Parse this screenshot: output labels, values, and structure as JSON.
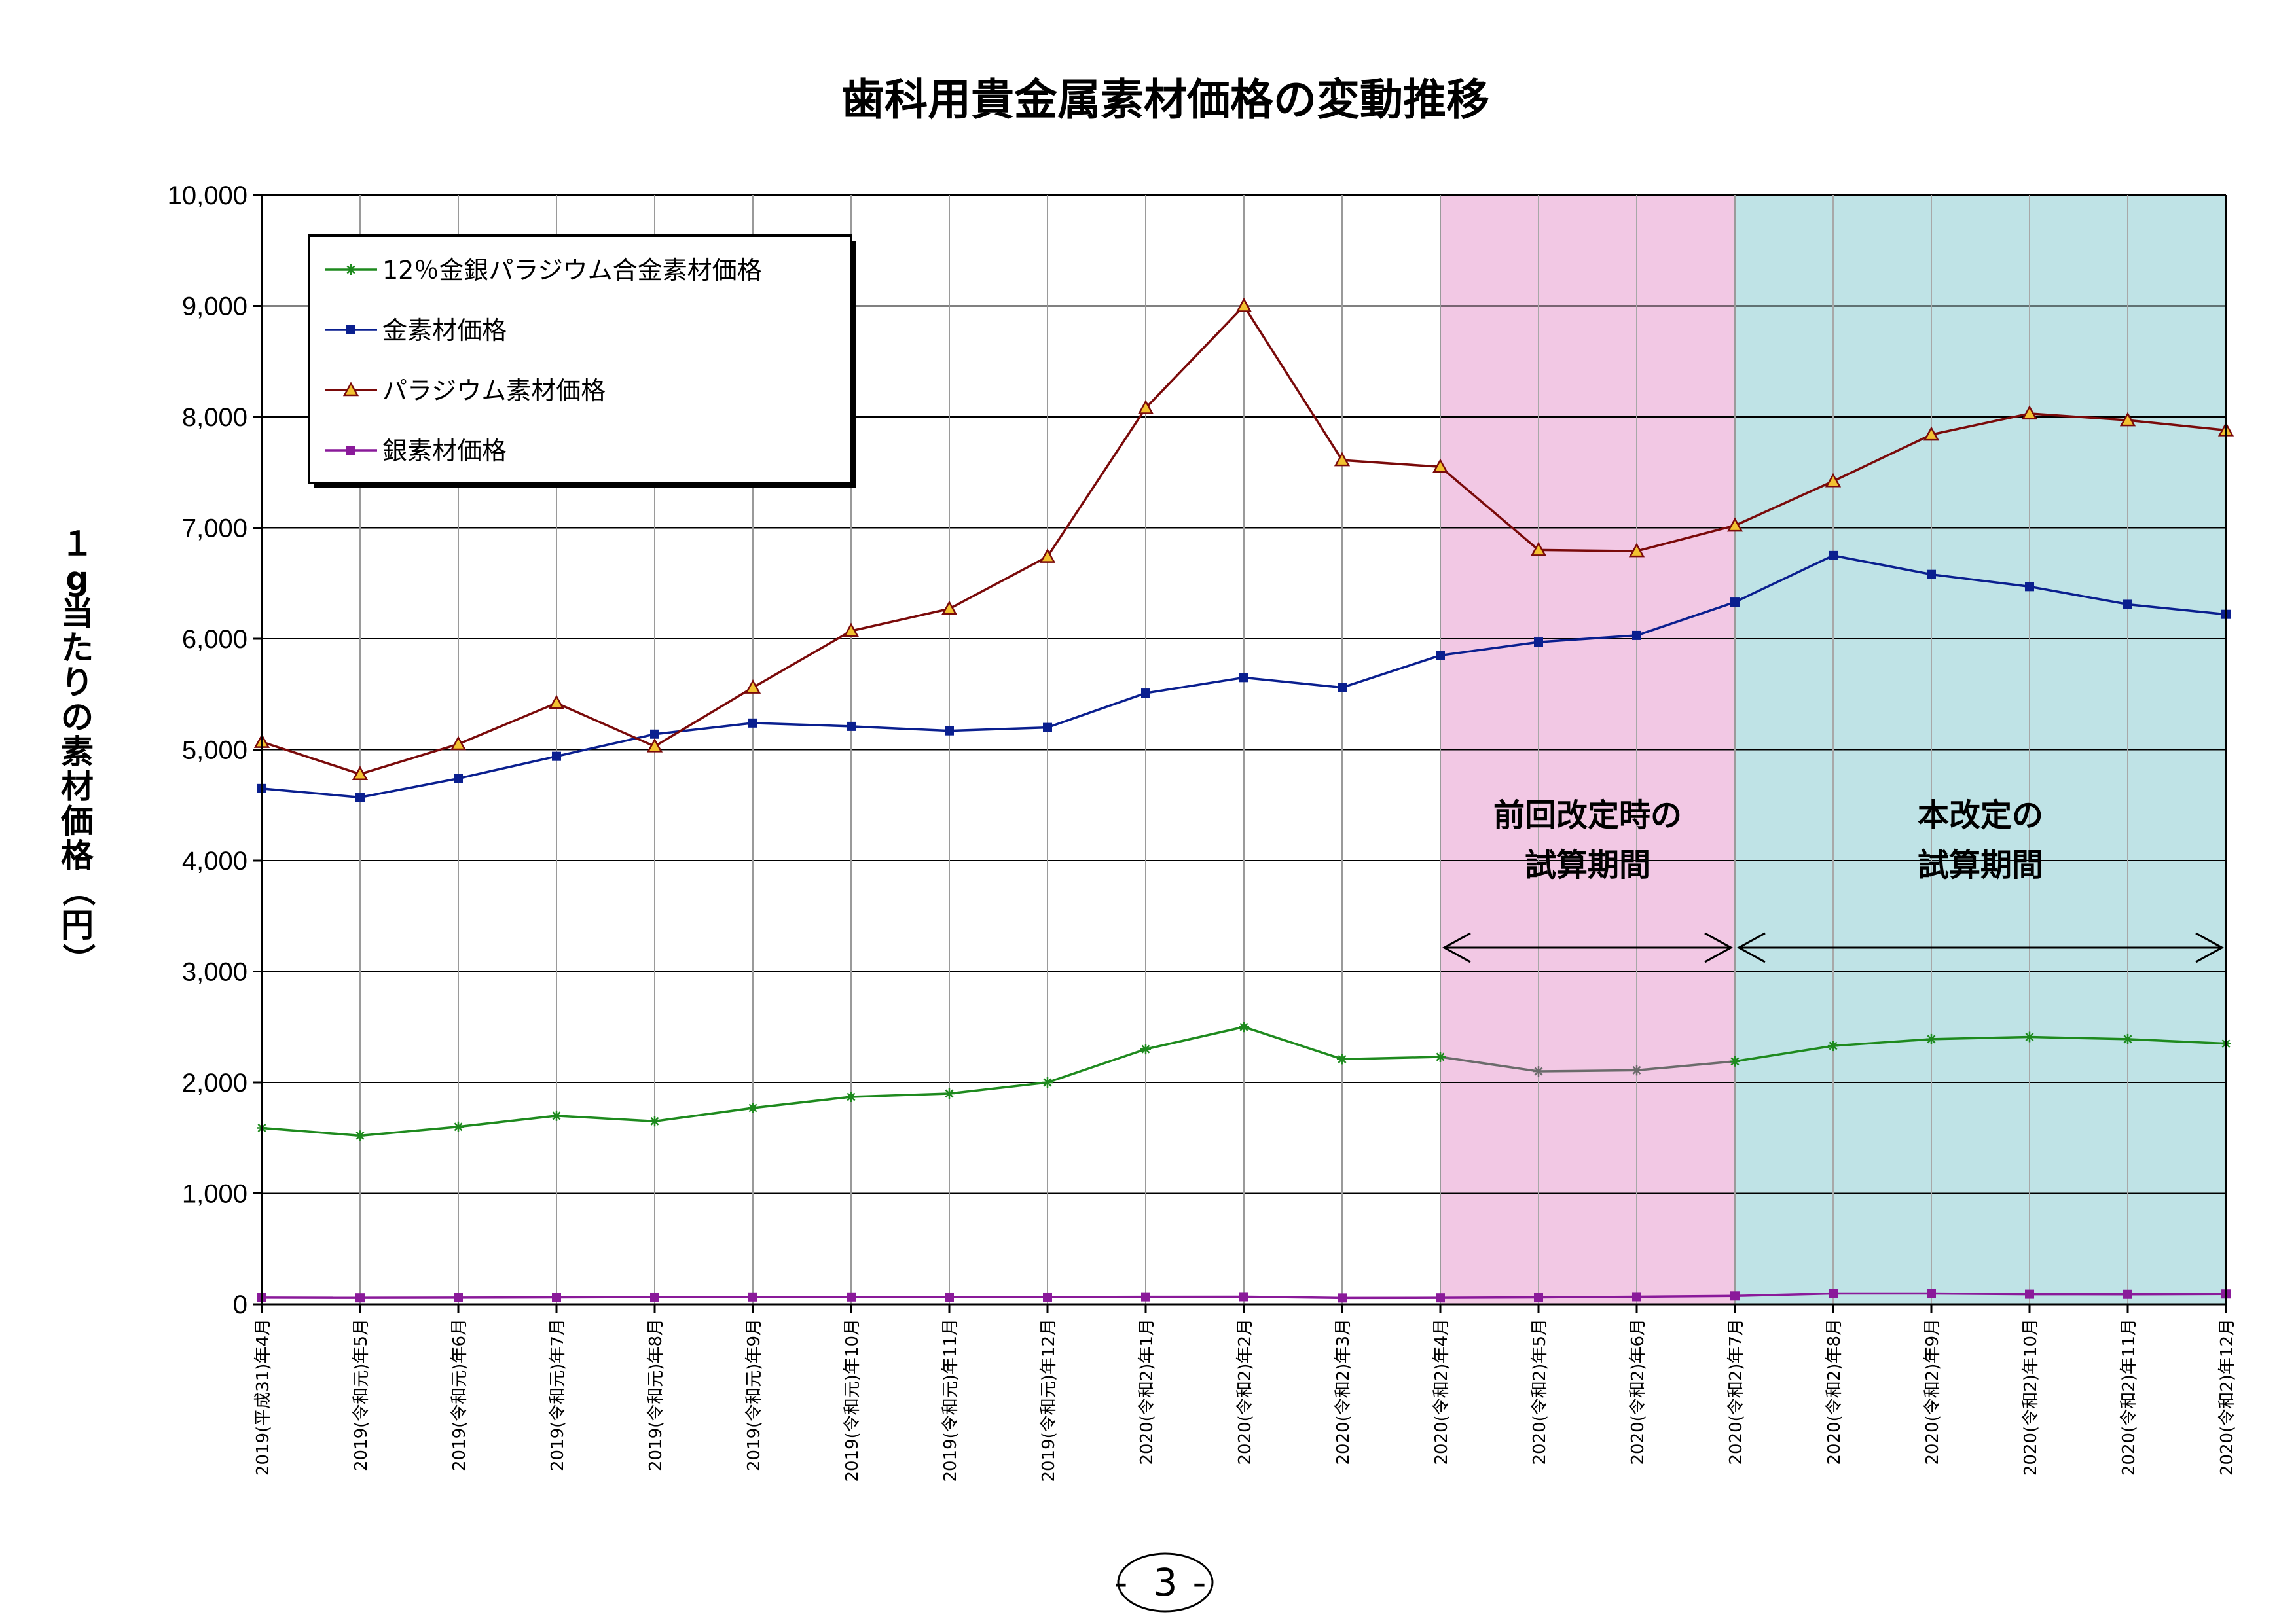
{
  "page_number": "3",
  "colors": {
    "alloy": "#1e8a1e",
    "alloy_in_period": "#6b6b6b",
    "gold": "#0a1f8f",
    "palladium": "#7a0a0a",
    "palladium_marker_fill": "#f2c230",
    "silver": "#8a1a9a",
    "previous_period_band": "#f2c8e4",
    "current_period_band": "#bfe3e6",
    "grid": "#000000"
  },
  "chart_data": {
    "type": "line",
    "title": "歯科用貴金属素材価格の変動推移",
    "ylabel": "１g当たりの素材価格（円）",
    "xlabel": "",
    "ylim": [
      0,
      10000
    ],
    "yticks": [
      0,
      1000,
      2000,
      3000,
      4000,
      5000,
      6000,
      7000,
      8000,
      9000,
      10000
    ],
    "ytick_labels": [
      "0",
      "1,000",
      "2,000",
      "3,000",
      "4,000",
      "5,000",
      "6,000",
      "7,000",
      "8,000",
      "9,000",
      "10,000"
    ],
    "grid": true,
    "legend_position": "top-left",
    "categories": [
      "2019(平成31)年4月",
      "2019(令和元)年5月",
      "2019(令和元)年6月",
      "2019(令和元)年7月",
      "2019(令和元)年8月",
      "2019(令和元)年9月",
      "2019(令和元)年10月",
      "2019(令和元)年11月",
      "2019(令和元)年12月",
      "2020(令和2)年1月",
      "2020(令和2)年2月",
      "2020(令和2)年3月",
      "2020(令和2)年4月",
      "2020(令和2)年5月",
      "2020(令和2)年6月",
      "2020(令和2)年7月",
      "2020(令和2)年8月",
      "2020(令和2)年9月",
      "2020(令和2)年10月",
      "2020(令和2)年11月",
      "2020(令和2)年12月"
    ],
    "series": [
      {
        "name": "12％金銀パラジウム合金素材価格",
        "color_key": "alloy",
        "marker": "star",
        "values": [
          1590,
          1520,
          1600,
          1700,
          1650,
          1770,
          1870,
          1900,
          2000,
          2300,
          2500,
          2210,
          2230,
          2100,
          2110,
          2190,
          2330,
          2390,
          2410,
          2390,
          2350
        ]
      },
      {
        "name": "金素材価格",
        "color_key": "gold",
        "marker": "square",
        "values": [
          4650,
          4570,
          4740,
          4940,
          5140,
          5240,
          5210,
          5170,
          5200,
          5510,
          5650,
          5560,
          5850,
          5970,
          6030,
          6330,
          6750,
          6580,
          6470,
          6310,
          6220
        ]
      },
      {
        "name": "パラジウム素材価格",
        "color_key": "palladium",
        "marker": "triangle",
        "values": [
          5070,
          4780,
          5050,
          5420,
          5030,
          5560,
          6070,
          6270,
          6740,
          8080,
          9000,
          7610,
          7550,
          6800,
          6790,
          7020,
          7420,
          7840,
          8030,
          7970,
          7880
        ]
      },
      {
        "name": "銀素材価格",
        "color_key": "silver",
        "marker": "square",
        "values": [
          60,
          58,
          60,
          62,
          65,
          66,
          66,
          65,
          65,
          67,
          68,
          57,
          58,
          62,
          68,
          75,
          97,
          97,
          91,
          90,
          93
        ]
      }
    ],
    "periods": [
      {
        "label_line1": "前回改定時の",
        "label_line2": "試算期間",
        "start_index": 12,
        "end_index": 15,
        "color_key": "previous_period_band"
      },
      {
        "label_line1": "本改定の",
        "label_line2": "試算期間",
        "start_index": 15,
        "end_index": 20,
        "color_key": "current_period_band"
      }
    ]
  }
}
